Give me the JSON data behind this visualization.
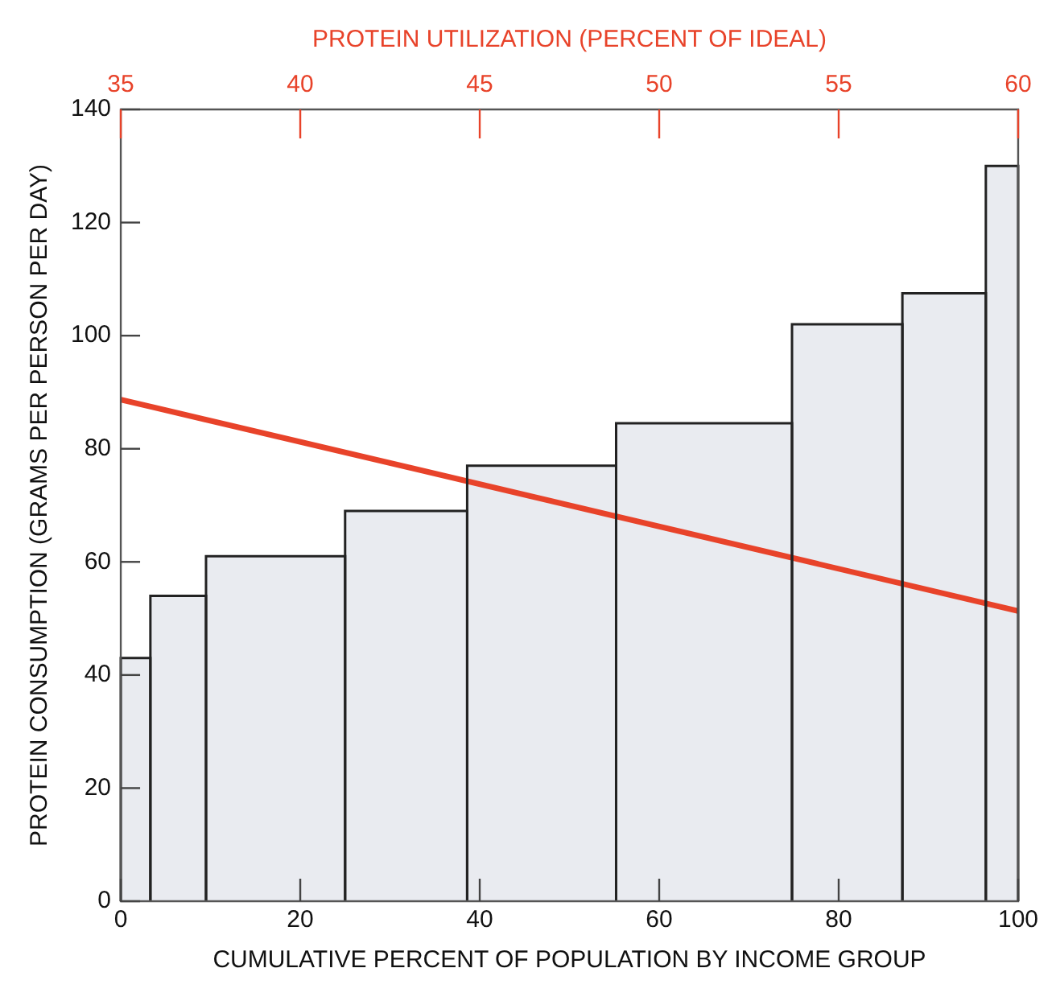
{
  "chart_data": {
    "type": "histogram",
    "xlabel": "CUMULATIVE PERCENT OF POPULATION BY INCOME GROUP",
    "ylabel": "PROTEIN CONSUMPTION (GRAMS PER PERSON PER DAY)",
    "x2label": "PROTEIN UTILIZATION (PERCENT OF IDEAL)",
    "xlim": [
      0,
      100
    ],
    "xticks": [
      0,
      20,
      40,
      60,
      80,
      100
    ],
    "ylim": [
      0,
      140
    ],
    "yticks": [
      0,
      20,
      40,
      60,
      80,
      100,
      120,
      140
    ],
    "x2lim": [
      35,
      60
    ],
    "x2ticks": [
      35,
      40,
      45,
      50,
      55,
      60
    ],
    "series": [
      {
        "color": "#e9ebf0",
        "bins": [
          0,
          3.3,
          9.5,
          25,
          38.6,
          55.2,
          74.8,
          87.1,
          96.4,
          100
        ],
        "values": [
          43,
          54,
          61,
          69,
          77,
          84.5,
          102,
          107.5,
          130
        ]
      },
      {
        "type": "line",
        "axis": "x2",
        "color": "#e8432a",
        "x": [
          35,
          60
        ],
        "values": [
          88.7,
          51.3
        ]
      }
    ]
  }
}
